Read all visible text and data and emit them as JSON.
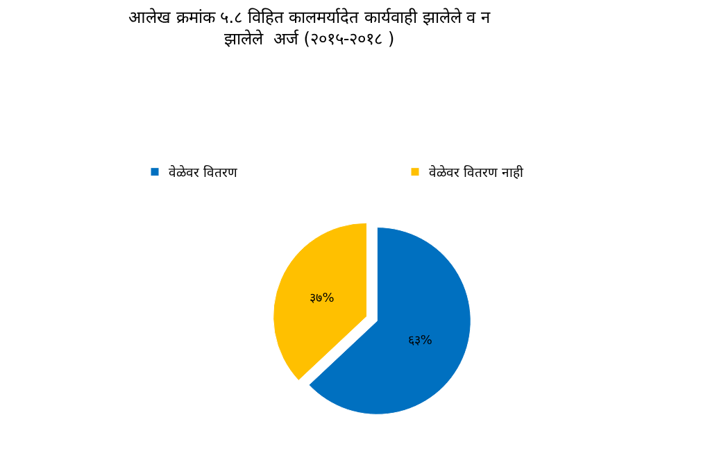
{
  "chart_data": {
    "type": "pie",
    "title": "आलेख क्रमांक ५.८ विहित कालमर्यादेत कार्यवाही झालेले व न\nझालेले  अर्ज (२०१५-२०१८ )",
    "categories": [
      "वेळेवर वितरण",
      "वेळेवर वितरण नाही"
    ],
    "values": [
      63,
      37
    ],
    "value_labels": [
      "६३%",
      "३७%"
    ],
    "colors": [
      "#0070c0",
      "#ffc000"
    ],
    "legend": "top"
  }
}
